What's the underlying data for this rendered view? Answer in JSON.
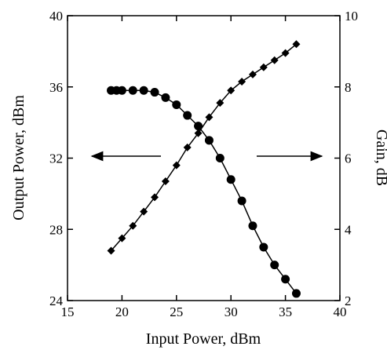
{
  "chart_data": {
    "type": "line",
    "title": "",
    "xlabel": "Input Power, dBm",
    "ylabel_left": "Output Power, dBm",
    "ylabel_right": "Gain, dB",
    "xlim": [
      15,
      40
    ],
    "ylim_left": [
      24,
      40
    ],
    "ylim_right": [
      2,
      10
    ],
    "xticks": [
      15,
      20,
      25,
      30,
      35,
      40
    ],
    "yticks_left": [
      24,
      28,
      32,
      36,
      40
    ],
    "yticks_right": [
      2,
      4,
      6,
      8,
      10
    ],
    "grid": false,
    "series": [
      {
        "axis": "left",
        "marker": "diamond",
        "x": [
          19,
          20,
          21,
          22,
          23,
          24,
          25,
          26,
          27,
          28,
          29,
          30,
          31,
          32,
          33,
          34,
          35,
          36
        ],
        "y": [
          26.8,
          27.5,
          28.2,
          29.0,
          29.8,
          30.7,
          31.6,
          32.6,
          33.4,
          34.3,
          35.1,
          35.8,
          36.3,
          36.7,
          37.1,
          37.5,
          37.9,
          38.4
        ]
      },
      {
        "axis": "right",
        "marker": "circle",
        "x": [
          19,
          19.5,
          20,
          21,
          22,
          23,
          24,
          25,
          26,
          27,
          28,
          29,
          30,
          31,
          32,
          33,
          34,
          35,
          36
        ],
        "y": [
          7.9,
          7.9,
          7.9,
          7.9,
          7.9,
          7.85,
          7.7,
          7.5,
          7.2,
          6.9,
          6.5,
          6.0,
          5.4,
          4.8,
          4.1,
          3.5,
          3.0,
          2.6,
          2.2
        ]
      }
    ],
    "annotations": [
      {
        "type": "arrow",
        "direction": "left",
        "points_to": "left-axis"
      },
      {
        "type": "arrow",
        "direction": "right",
        "points_to": "right-axis"
      }
    ]
  }
}
